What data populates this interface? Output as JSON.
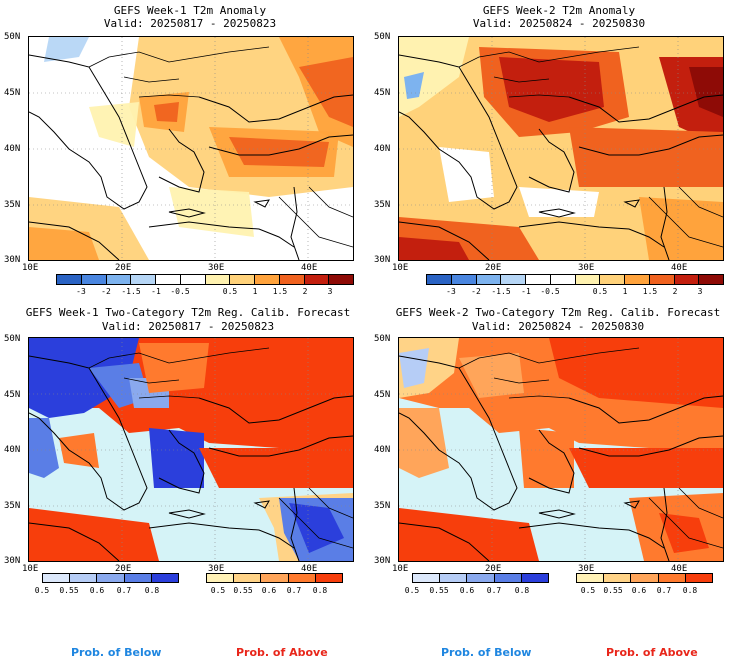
{
  "panels": [
    {
      "title_line1": "GEFS Week-1 T2m Anomaly",
      "title_line2": "Valid: 20250817 - 20250823",
      "colorbar_labels": [
        "-3",
        "-2",
        "-1.5",
        "-1",
        "-0.5",
        "0.5",
        "1",
        "1.5",
        "2",
        "3"
      ]
    },
    {
      "title_line1": "GEFS Week-2 T2m Anomaly",
      "title_line2": "Valid: 20250824 - 20250830",
      "colorbar_labels": [
        "-3",
        "-2",
        "-1.5",
        "-1",
        "-0.5",
        "0.5",
        "1",
        "1.5",
        "2",
        "3"
      ]
    },
    {
      "title_line1": "GEFS Week-1 Two-Category T2m Reg. Calib. Forecast",
      "title_line2": "Valid: 20250817 - 20250823",
      "below_labels": [
        "0.5",
        "0.55",
        "0.6",
        "0.7",
        "0.8"
      ],
      "above_labels": [
        "0.5",
        "0.55",
        "0.6",
        "0.7",
        "0.8"
      ]
    },
    {
      "title_line1": "GEFS Week-2 Two-Category T2m Reg. Calib. Forecast",
      "title_line2": "Valid: 20250824 - 20250830",
      "below_labels": [
        "0.5",
        "0.55",
        "0.6",
        "0.7",
        "0.8"
      ],
      "above_labels": [
        "0.5",
        "0.55",
        "0.6",
        "0.7",
        "0.8"
      ]
    }
  ],
  "lat_labels": [
    "50N",
    "45N",
    "40N",
    "35N",
    "30N"
  ],
  "lon_labels": [
    "10E",
    "20E",
    "30E",
    "40E"
  ],
  "prob_below_label": "Prob. of Below",
  "prob_above_label": "Prob. of Above",
  "colors": {
    "anomaly_scale": [
      "#2a63c4",
      "#4a86e0",
      "#7db3ef",
      "#b6d6f6",
      "#ffffff",
      "#ffffff",
      "#fff2b0",
      "#ffd27a",
      "#ffa33c",
      "#f0621f",
      "#c31f0e",
      "#8e0b06"
    ],
    "below_scale": [
      "#dce8fb",
      "#b6cdf6",
      "#8aa9ee",
      "#5a7ee6",
      "#2b3fdc"
    ],
    "above_scale": [
      "#fff1b6",
      "#ffd387",
      "#ffa55a",
      "#ff7a2e",
      "#f73e0c"
    ],
    "water": "#d5f3f7",
    "prob_below_text": "#1f86e0",
    "prob_above_text": "#e8261a"
  }
}
